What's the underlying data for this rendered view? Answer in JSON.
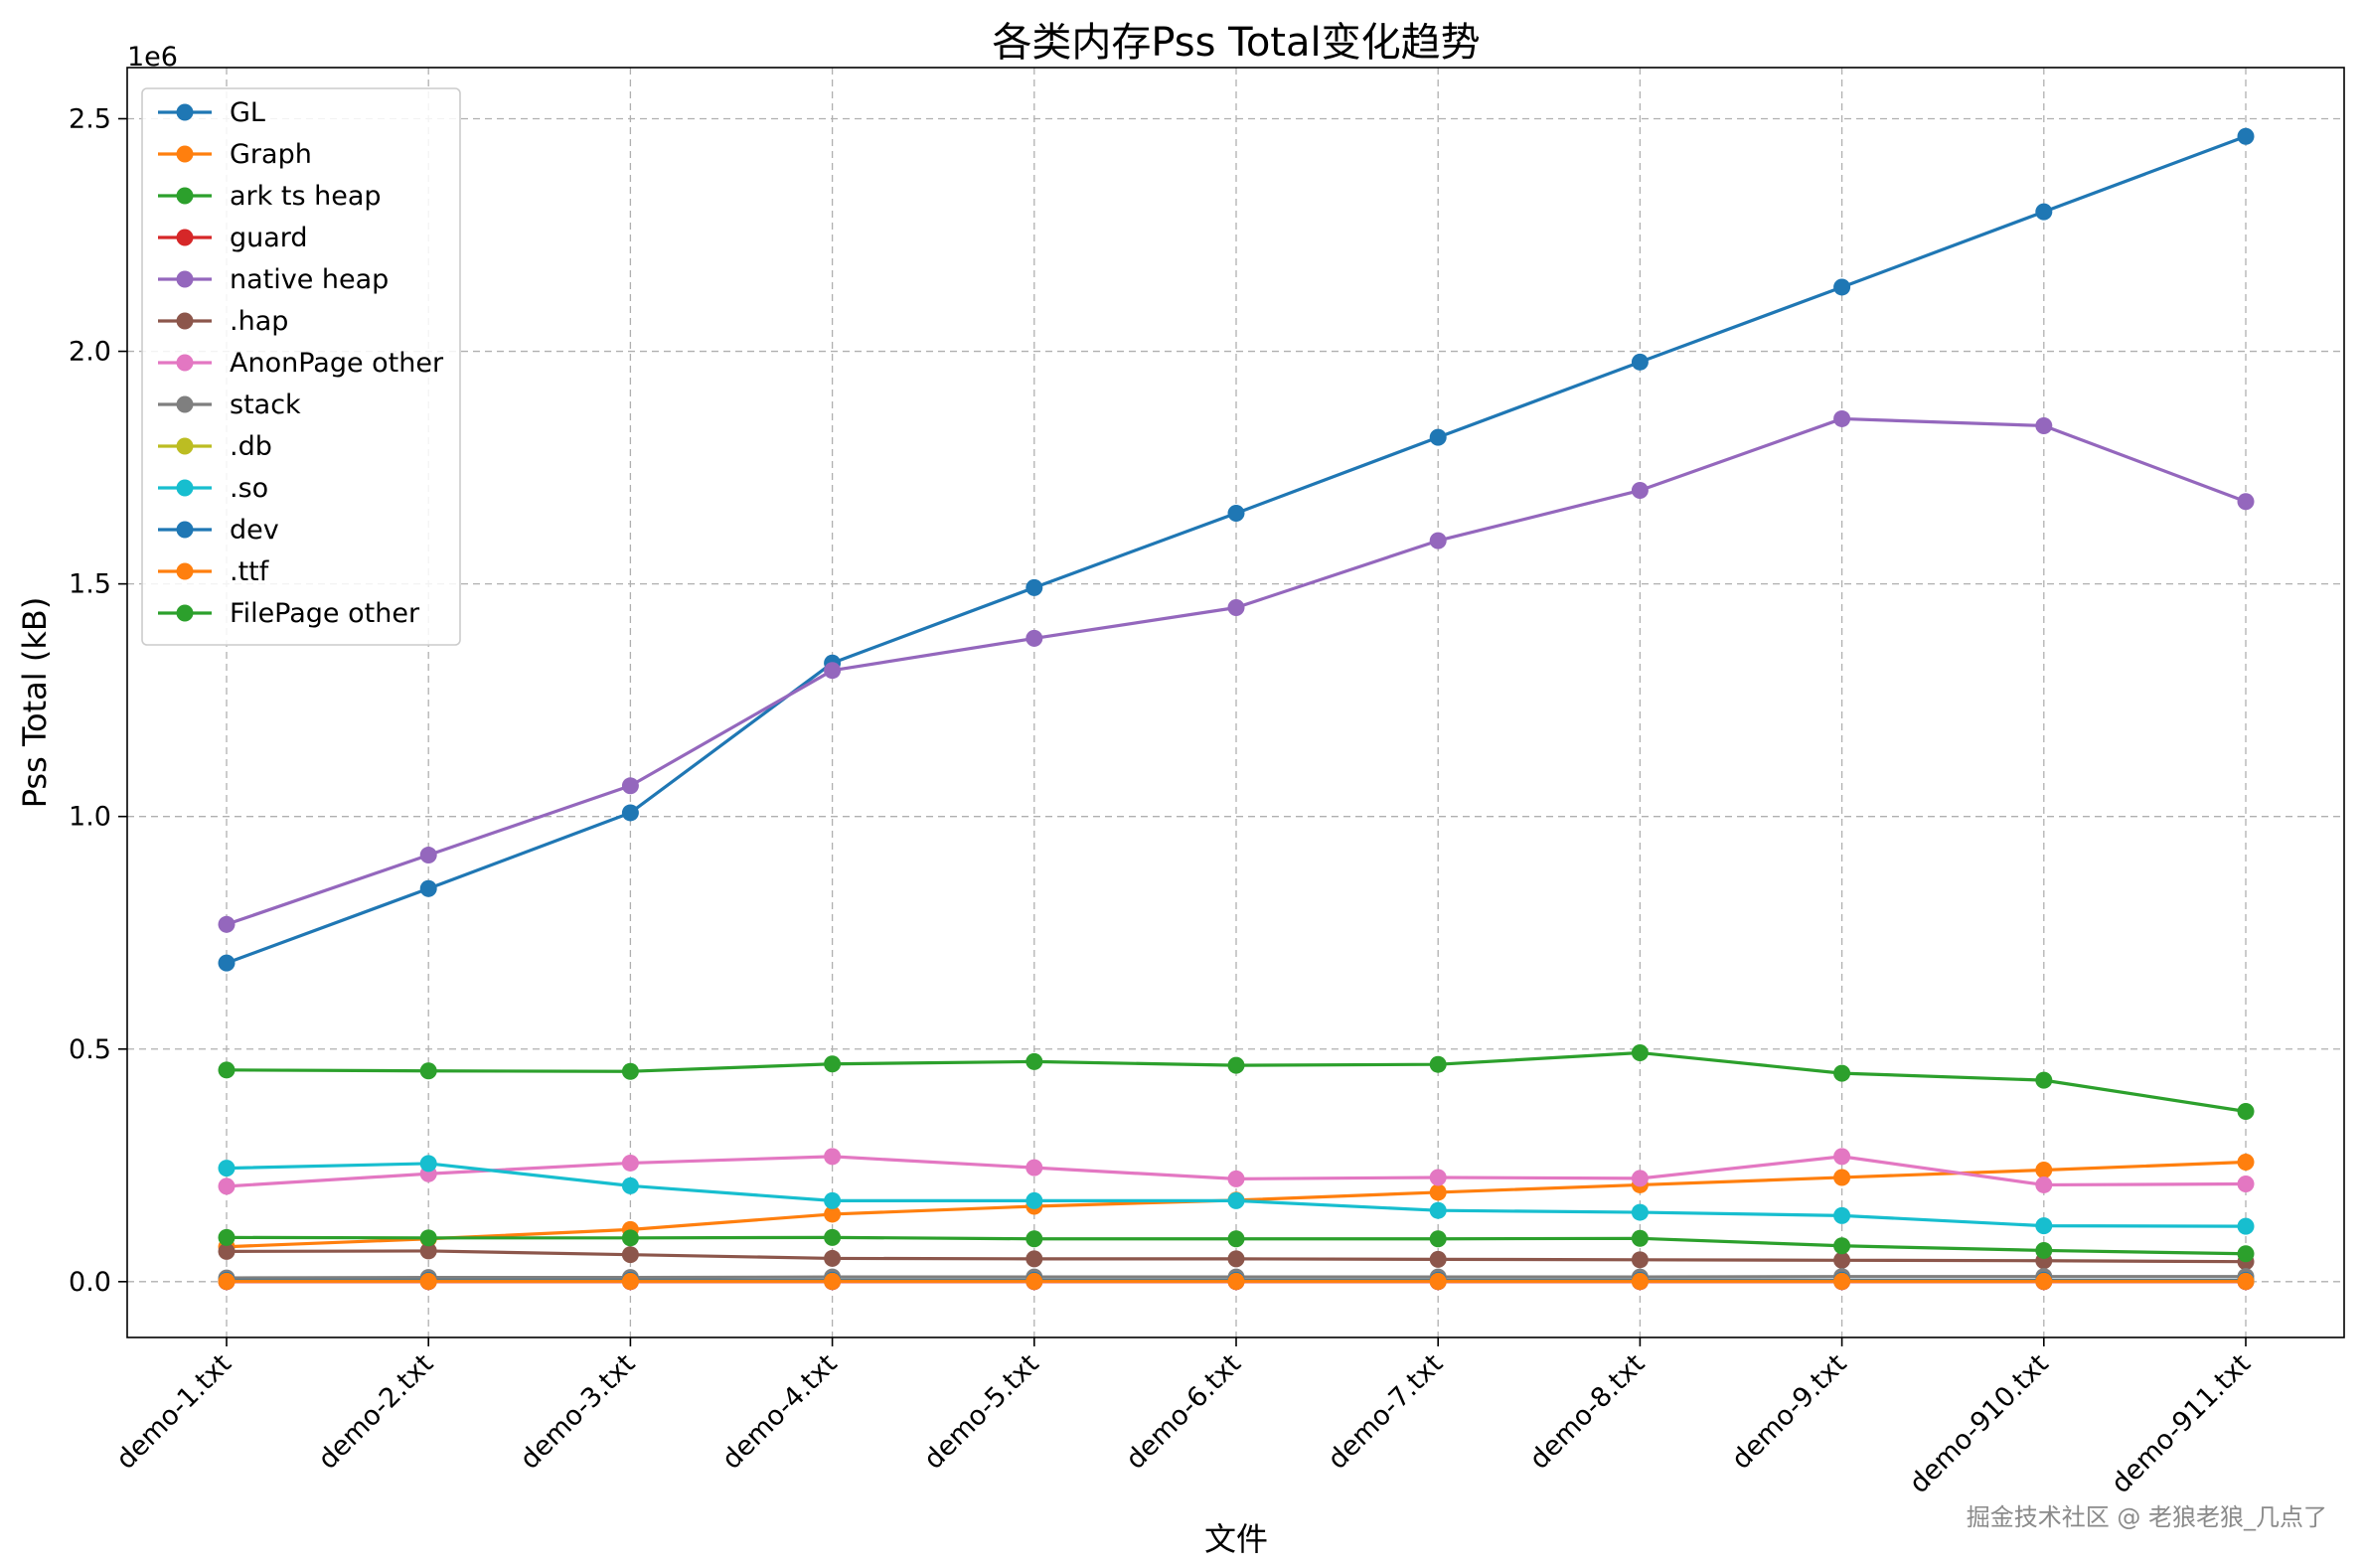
{
  "chart_data": {
    "type": "line",
    "title": "各类内存Pss Total变化趋势",
    "xlabel": "文件",
    "ylabel": "Pss Total (kB)",
    "y_offset_label": "1e6",
    "ylim": [
      -120000,
      2610000
    ],
    "grid": true,
    "legend_position": "upper-left",
    "categories": [
      "demo-1.txt",
      "demo-2.txt",
      "demo-3.txt",
      "demo-4.txt",
      "demo-5.txt",
      "demo-6.txt",
      "demo-7.txt",
      "demo-8.txt",
      "demo-9.txt",
      "demo-910.txt",
      "demo-911.txt"
    ],
    "y_ticks": [
      {
        "value": 0,
        "label": "0.0"
      },
      {
        "value": 500000,
        "label": "0.5"
      },
      {
        "value": 1000000,
        "label": "1.0"
      },
      {
        "value": 1500000,
        "label": "1.5"
      },
      {
        "value": 2000000,
        "label": "2.0"
      },
      {
        "value": 2500000,
        "label": "2.5"
      }
    ],
    "series": [
      {
        "name": "GL",
        "color": "#1f77b4",
        "values": [
          685000,
          845000,
          1008000,
          1330000,
          1492000,
          1652000,
          1815000,
          1977000,
          2138000,
          2300000,
          2462000
        ]
      },
      {
        "name": "Graph",
        "color": "#ff7f0e",
        "values": [
          75000,
          92000,
          112000,
          145000,
          162000,
          175000,
          192000,
          208000,
          224000,
          240000,
          257000
        ]
      },
      {
        "name": "ark ts heap",
        "color": "#2ca02c",
        "values": [
          455000,
          453000,
          452000,
          468000,
          473000,
          465000,
          467000,
          492000,
          448000,
          433000,
          366000
        ]
      },
      {
        "name": "guard",
        "color": "#d62728",
        "values": [
          0,
          0,
          0,
          0,
          0,
          0,
          0,
          0,
          0,
          0,
          0
        ]
      },
      {
        "name": "native heap",
        "color": "#9467bd",
        "values": [
          768000,
          917000,
          1066000,
          1314000,
          1383000,
          1449000,
          1593000,
          1701000,
          1855000,
          1840000,
          1677000
        ]
      },
      {
        "name": ".hap",
        "color": "#8c564b",
        "values": [
          65000,
          66000,
          58000,
          50000,
          49000,
          49000,
          48000,
          47000,
          46000,
          45000,
          43000
        ]
      },
      {
        "name": "AnonPage other",
        "color": "#e377c2",
        "values": [
          205000,
          232000,
          255000,
          269000,
          245000,
          221000,
          224000,
          222000,
          269000,
          208000,
          210000
        ]
      },
      {
        "name": "stack",
        "color": "#7f7f7f",
        "values": [
          8000,
          9000,
          9000,
          10000,
          10000,
          10000,
          10000,
          10000,
          11000,
          11000,
          11000
        ]
      },
      {
        "name": ".db",
        "color": "#bcbd22",
        "values": [
          1000,
          1000,
          1000,
          1000,
          1000,
          1000,
          1000,
          1000,
          1000,
          1000,
          1000
        ]
      },
      {
        "name": ".so",
        "color": "#17becf",
        "values": [
          244000,
          254000,
          206000,
          174000,
          174000,
          174000,
          153000,
          149000,
          142000,
          120000,
          119000
        ]
      },
      {
        "name": "dev",
        "color": "#1f77b4",
        "values": [
          3000,
          3000,
          3000,
          3000,
          3000,
          3000,
          3000,
          3000,
          3000,
          3000,
          3000
        ]
      },
      {
        "name": ".ttf",
        "color": "#ff7f0e",
        "values": [
          1000,
          1000,
          1000,
          1000,
          1000,
          1000,
          1000,
          1000,
          1000,
          1000,
          1000
        ]
      },
      {
        "name": "FilePage other",
        "color": "#2ca02c",
        "values": [
          95000,
          94000,
          94000,
          95000,
          92000,
          92000,
          92000,
          93000,
          77000,
          67000,
          60000
        ]
      }
    ]
  },
  "watermark": "掘金技术社区 @ 老狼老狼_几点了"
}
